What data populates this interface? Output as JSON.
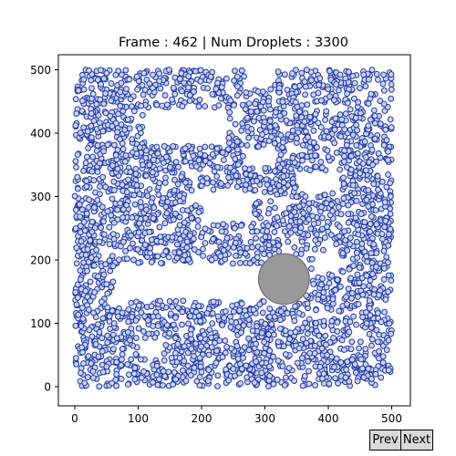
{
  "title": "Frame : 462 | Num Droplets : 3300",
  "controls": {
    "prev_label": "Prev",
    "next_label": "Next"
  },
  "colors": {
    "droplet_fill": "#c8d4ef",
    "droplet_edge": "#2236a6",
    "obstacle_fill": "#999999",
    "obstacle_edge": "#707070"
  },
  "chart_data": {
    "type": "scatter",
    "title": "Frame : 462 | Num Droplets : 3300",
    "xlabel": "",
    "ylabel": "",
    "xlim": [
      -10,
      500
    ],
    "ylim": [
      -10,
      500
    ],
    "xticks": [
      0,
      100,
      200,
      300,
      400,
      500
    ],
    "yticks": [
      0,
      100,
      200,
      300,
      400,
      500
    ],
    "grid": false,
    "series": [
      {
        "kind": "droplets",
        "count": 3300,
        "domain": {
          "x": [
            0,
            500
          ],
          "y": [
            0,
            500
          ]
        },
        "radius_units": 4.2
      },
      {
        "kind": "obstacle",
        "center": [
          330,
          170
        ],
        "radius": 40
      }
    ],
    "empty_regions": [
      {
        "type": "channel",
        "x": [
          65,
          330
        ],
        "y": [
          136,
          194
        ]
      },
      {
        "type": "gap",
        "x": [
          110,
          240
        ],
        "y": [
          380,
          440
        ]
      },
      {
        "type": "gap",
        "x": [
          200,
          280
        ],
        "y": [
          260,
          310
        ]
      },
      {
        "type": "gap",
        "x": [
          270,
          320
        ],
        "y": [
          345,
          375
        ]
      },
      {
        "type": "gap",
        "x": [
          355,
          420
        ],
        "y": [
          305,
          340
        ]
      },
      {
        "type": "gap",
        "x": [
          380,
          420
        ],
        "y": [
          180,
          215
        ]
      },
      {
        "type": "gap",
        "x": [
          100,
          140
        ],
        "y": [
          45,
          75
        ]
      },
      {
        "type": "gap",
        "x": [
          270,
          310
        ],
        "y": [
          470,
          500
        ]
      }
    ]
  }
}
